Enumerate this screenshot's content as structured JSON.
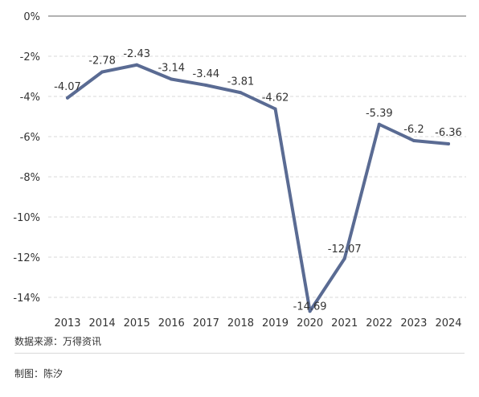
{
  "chart_data": {
    "type": "line",
    "title": "",
    "xlabel": "",
    "ylabel": "",
    "categories": [
      "2013",
      "2014",
      "2015",
      "2016",
      "2017",
      "2018",
      "2019",
      "2020",
      "2021",
      "2022",
      "2023",
      "2024"
    ],
    "series": [
      {
        "values": [
          -4.07,
          -2.78,
          -2.43,
          -3.14,
          -3.44,
          -3.81,
          -4.62,
          -14.69,
          -12.07,
          -5.39,
          -6.2,
          -6.36
        ]
      }
    ],
    "data_labels": [
      "-4.07",
      "-2.78",
      "-2.43",
      "-3.14",
      "-3.44",
      "-3.81",
      "-4.62",
      "-14.69",
      "-12.07",
      "-5.39",
      "-6.2",
      "-6.36"
    ],
    "ylim": [
      -15,
      0
    ],
    "yticks": [
      0,
      -2,
      -4,
      -6,
      -8,
      -10,
      -12,
      -14
    ],
    "ytick_labels": [
      "0%",
      "-2%",
      "-4%",
      "-6%",
      "-8%",
      "-10%",
      "-12%",
      "-14%"
    ],
    "grid": true,
    "legend": "none",
    "line_color": "#5a6b93"
  },
  "footer": {
    "source": "数据来源：万得资讯",
    "author": "制图：陈汐"
  }
}
